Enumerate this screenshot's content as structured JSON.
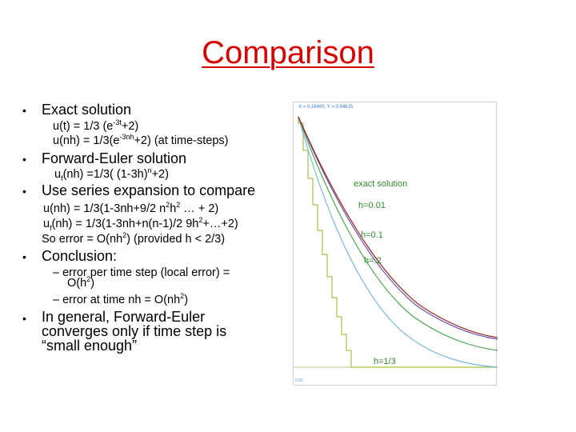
{
  "title": "Comparison",
  "bullet_glyph": "•",
  "bullets": {
    "exact": {
      "heading": "Exact solution",
      "line1": {
        "a": "u(t) = 1/3 (e",
        "sup": "-3t",
        "b": "+2)"
      },
      "line2": {
        "a": "u(nh) = 1/3(e",
        "sup": "-3nh",
        "b": "+2)  (at time-steps)"
      }
    },
    "forward_euler": {
      "heading": "Forward-Euler solution",
      "line1": {
        "a": "u",
        "sub": "f",
        "b": "(nh) =1/3( (1-3h)",
        "sup": "n",
        "c": "+2)"
      }
    },
    "series": {
      "heading": "Use series expansion to compare",
      "line1": {
        "a": "u(nh) = 1/3(1-3nh+9/2 n",
        "sup1": "2",
        "b": "h",
        "sup2": "2",
        "c": " … + 2)"
      },
      "line2": {
        "a": "u",
        "sub": "f",
        "b": "(nh) = 1/3(1-3nh+n(n-1)/2 9h",
        "sup": "2",
        "c": "+…+2)"
      },
      "line3": {
        "a": "So error = O(nh",
        "sup": "2",
        "b": ") (provided h < 2/3)"
      }
    },
    "conclusion": {
      "heading": "Conclusion:",
      "dash1a": "– error per time step (local error) =",
      "dash1b": {
        "a": "O(h",
        "sup": "2",
        "b": ")"
      },
      "dash2": {
        "a": "– error at time nh = O(nh",
        "sup": "2",
        "b": ")"
      }
    },
    "general": {
      "line1": "In general, Forward-Euler",
      "line2": "converges only if time step is",
      "line3": "“small enough”"
    }
  },
  "plot": {
    "readout": "X = 0.16400, Y = 0.94615",
    "corner": "0.85",
    "labels": {
      "exact": "exact solution",
      "h001": "h=0.01",
      "h01": "h=0.1",
      "h02": "h=.2",
      "h13": "h=1/3"
    },
    "colors": {
      "exact": "#9a2a2a",
      "h001": "#6a4fb0",
      "h01": "#4aa84a",
      "h02": "#79b9df",
      "h13": "#a8bf4a",
      "text": "#2e8b2e"
    }
  }
}
